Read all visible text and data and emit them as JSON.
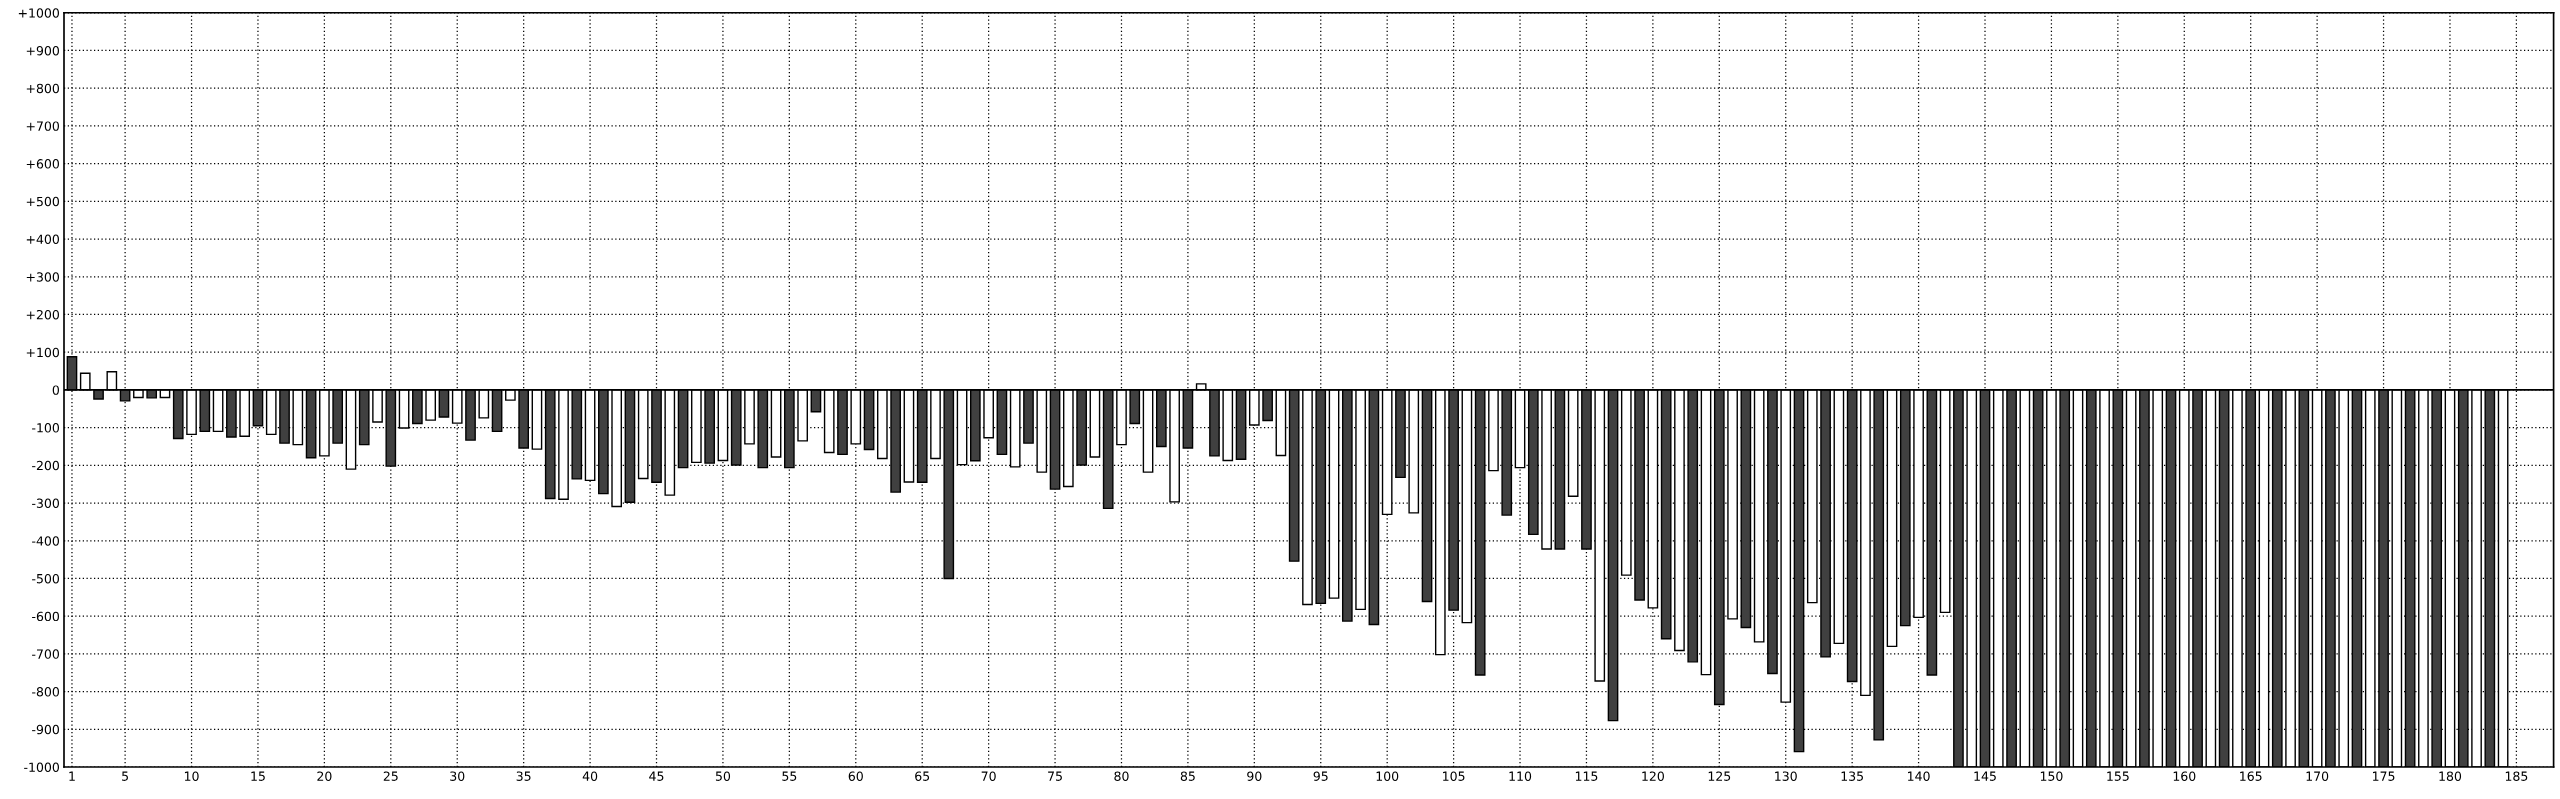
{
  "chart_data": {
    "type": "bar",
    "x": [
      1,
      2,
      3,
      4,
      5,
      6,
      7,
      8,
      9,
      10,
      11,
      12,
      13,
      14,
      15,
      16,
      17,
      18,
      19,
      20,
      21,
      22,
      23,
      24,
      25,
      26,
      27,
      28,
      29,
      30,
      31,
      32,
      33,
      34,
      35,
      36,
      37,
      38,
      39,
      40,
      41,
      42,
      43,
      44,
      45,
      46,
      47,
      48,
      49,
      50,
      51,
      52,
      53,
      54,
      55,
      56,
      57,
      58,
      59,
      60,
      61,
      62,
      63,
      64,
      65,
      66,
      67,
      68,
      69,
      70,
      71,
      72,
      73,
      74,
      75,
      76,
      77,
      78,
      79,
      80,
      81,
      82,
      83,
      84,
      85,
      86,
      87,
      88,
      89,
      90,
      91,
      92,
      93,
      94,
      95,
      96,
      97,
      98,
      99,
      100,
      101,
      102,
      103,
      104,
      105,
      106,
      107,
      108,
      109,
      110,
      111,
      112,
      113,
      114,
      115,
      116,
      117,
      118,
      119,
      120,
      121,
      122,
      123,
      124,
      125,
      126,
      127,
      128,
      129,
      130,
      131,
      132,
      133,
      134,
      135,
      136,
      137,
      138,
      139,
      140,
      141,
      142,
      143,
      144,
      145,
      146,
      147,
      148,
      149,
      150,
      151,
      152,
      153,
      154,
      155,
      156,
      157,
      158,
      159,
      160,
      161,
      162,
      163,
      164,
      165,
      166,
      167,
      168,
      169,
      170,
      171,
      172,
      173,
      174,
      175,
      176,
      177,
      178,
      179,
      180,
      181,
      182,
      183,
      184
    ],
    "values": [
      88,
      44,
      -24,
      48,
      -29,
      -20,
      -21,
      -20,
      -129,
      -118,
      -110,
      -110,
      -125,
      -123,
      -95,
      -118,
      -141,
      -145,
      -180,
      -175,
      -141,
      -210,
      -145,
      -85,
      -202,
      -101,
      -89,
      -80,
      -72,
      -88,
      -133,
      -74,
      -110,
      -27,
      -154,
      -157,
      -288,
      -290,
      -236,
      -240,
      -275,
      -309,
      -298,
      -235,
      -245,
      -279,
      -206,
      -192,
      -194,
      -187,
      -199,
      -143,
      -206,
      -178,
      -206,
      -135,
      -58,
      -166,
      -171,
      -143,
      -158,
      -182,
      -271,
      -244,
      -245,
      -182,
      -500,
      -198,
      -188,
      -127,
      -171,
      -204,
      -141,
      -218,
      -263,
      -256,
      -199,
      -178,
      -314,
      -145,
      -89,
      -218,
      -150,
      -297,
      -154,
      16,
      -175,
      -187,
      -184,
      -93,
      -81,
      -174,
      -454,
      -569,
      -566,
      -552,
      -613,
      -582,
      -622,
      -330,
      -232,
      -326,
      -561,
      -702,
      -584,
      -617,
      -756,
      -214,
      -332,
      -206,
      -383,
      -422,
      -422,
      -282,
      -422,
      -772,
      -877,
      -491,
      -557,
      -578,
      -660,
      -691,
      -721,
      -755,
      -834,
      -607,
      -630,
      -668,
      -752,
      -828,
      -959,
      -564,
      -708,
      -672,
      -773,
      -810,
      -928,
      -680,
      -625,
      -603,
      -756,
      -590,
      -1000,
      -1000,
      -1000,
      -1000,
      -1000,
      -1000,
      -1000,
      -1000,
      -1000,
      -1000,
      -1000,
      -1000,
      -1000,
      -1000,
      -1000,
      -1000,
      -1000,
      -1000,
      -1000,
      -1000,
      -1000,
      -1000,
      -1000,
      -1000,
      -1000,
      -1000,
      -1000,
      -1000,
      -1000,
      -1000,
      -1000,
      -1000,
      -1000,
      -1000,
      -1000,
      -1000,
      -1000,
      -1000,
      -1000,
      -1000,
      -1000,
      -1000
    ],
    "colors": [
      "#404040",
      "#ffffff",
      "#404040",
      "#ffffff",
      "#404040",
      "#ffffff",
      "#404040",
      "#ffffff",
      "#404040",
      "#ffffff",
      "#404040",
      "#ffffff",
      "#404040",
      "#ffffff",
      "#404040",
      "#ffffff",
      "#404040",
      "#ffffff",
      "#404040",
      "#ffffff",
      "#404040",
      "#ffffff",
      "#404040",
      "#ffffff",
      "#404040",
      "#ffffff",
      "#404040",
      "#ffffff",
      "#404040",
      "#ffffff",
      "#404040",
      "#ffffff",
      "#404040",
      "#ffffff",
      "#404040",
      "#ffffff",
      "#404040",
      "#ffffff",
      "#404040",
      "#ffffff",
      "#404040",
      "#ffffff",
      "#404040",
      "#ffffff",
      "#404040",
      "#ffffff",
      "#404040",
      "#ffffff",
      "#404040",
      "#ffffff",
      "#404040",
      "#ffffff",
      "#404040",
      "#ffffff",
      "#404040",
      "#ffffff",
      "#404040",
      "#ffffff",
      "#404040",
      "#ffffff",
      "#404040",
      "#ffffff",
      "#404040",
      "#ffffff",
      "#404040",
      "#ffffff",
      "#404040",
      "#ffffff",
      "#404040",
      "#ffffff",
      "#404040",
      "#ffffff",
      "#404040",
      "#ffffff",
      "#404040",
      "#ffffff",
      "#404040",
      "#ffffff",
      "#404040",
      "#ffffff",
      "#404040",
      "#ffffff",
      "#404040",
      "#ffffff",
      "#404040",
      "#ffffff",
      "#404040",
      "#ffffff",
      "#404040",
      "#ffffff",
      "#404040",
      "#ffffff",
      "#404040",
      "#ffffff",
      "#404040",
      "#ffffff",
      "#404040",
      "#ffffff",
      "#404040",
      "#ffffff",
      "#404040",
      "#ffffff",
      "#404040",
      "#ffffff",
      "#404040",
      "#ffffff",
      "#404040",
      "#ffffff",
      "#404040",
      "#ffffff",
      "#404040",
      "#ffffff",
      "#404040",
      "#ffffff",
      "#404040",
      "#ffffff",
      "#404040",
      "#ffffff",
      "#404040",
      "#ffffff",
      "#404040",
      "#ffffff",
      "#404040",
      "#ffffff",
      "#404040",
      "#ffffff",
      "#404040",
      "#ffffff",
      "#404040",
      "#ffffff",
      "#404040",
      "#ffffff",
      "#404040",
      "#ffffff",
      "#404040",
      "#ffffff",
      "#404040",
      "#ffffff",
      "#404040",
      "#ffffff",
      "#404040",
      "#ffffff",
      "#404040",
      "#ffffff",
      "#404040",
      "#ffffff",
      "#404040",
      "#ffffff",
      "#404040",
      "#ffffff",
      "#404040",
      "#ffffff",
      "#404040",
      "#ffffff",
      "#404040",
      "#ffffff",
      "#404040",
      "#ffffff",
      "#404040",
      "#ffffff",
      "#404040",
      "#ffffff",
      "#404040",
      "#ffffff",
      "#404040",
      "#ffffff",
      "#404040",
      "#ffffff",
      "#404040",
      "#ffffff",
      "#404040",
      "#ffffff",
      "#404040",
      "#ffffff",
      "#404040",
      "#ffffff",
      "#404040",
      "#ffffff",
      "#404040",
      "#ffffff",
      "#404040",
      "#ffffff",
      "#404040",
      "#ffffff"
    ],
    "xlim": [
      0.4,
      187.8
    ],
    "xticks": [
      1,
      5,
      10,
      15,
      20,
      25,
      30,
      35,
      40,
      45,
      50,
      55,
      60,
      65,
      70,
      75,
      80,
      85,
      90,
      95,
      100,
      105,
      110,
      115,
      120,
      125,
      130,
      135,
      140,
      145,
      150,
      155,
      160,
      165,
      170,
      175,
      180,
      185
    ],
    "ylim": [
      -1000,
      1000
    ],
    "yticks": [
      {
        "value": 1000,
        "label": "+1000"
      },
      {
        "value": 900,
        "label": "+900"
      },
      {
        "value": 800,
        "label": "+800"
      },
      {
        "value": 700,
        "label": "+700"
      },
      {
        "value": 600,
        "label": "+600"
      },
      {
        "value": 500,
        "label": "+500"
      },
      {
        "value": 400,
        "label": "+400"
      },
      {
        "value": 300,
        "label": "+300"
      },
      {
        "value": 200,
        "label": "+200"
      },
      {
        "value": 100,
        "label": "+100"
      },
      0,
      -100,
      -200,
      -300,
      -400,
      -500,
      -600,
      -700,
      -800,
      -900,
      -1000
    ],
    "grid": true,
    "ref_lines": [
      {
        "axis": "y",
        "value": 0,
        "color": "#000000",
        "line_style": "solid"
      }
    ]
  }
}
